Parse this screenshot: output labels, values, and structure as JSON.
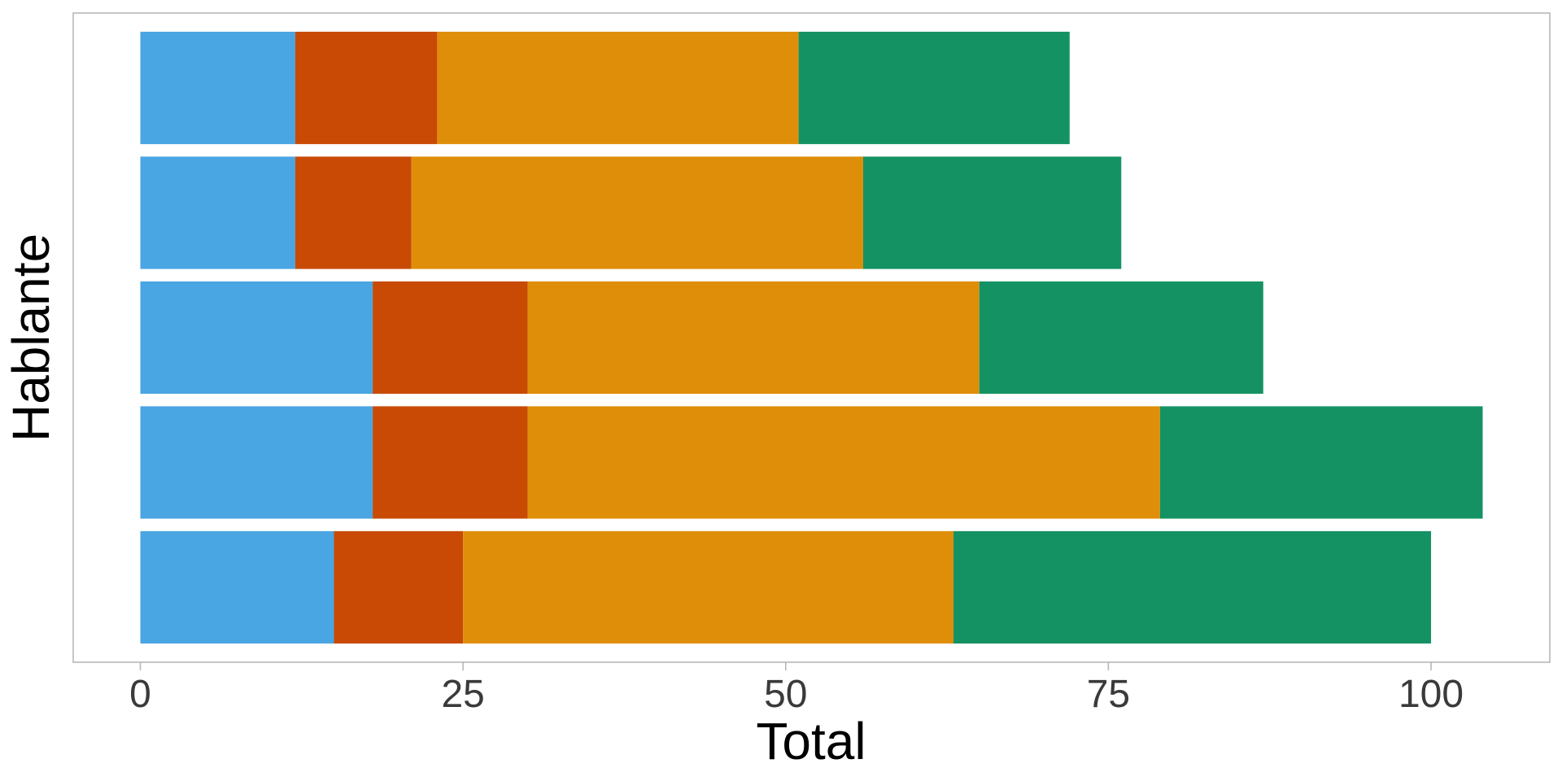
{
  "chart_data": {
    "type": "bar",
    "orientation": "horizontal",
    "stacked": true,
    "title": "",
    "xlabel": "Total",
    "ylabel": "Hablante",
    "xlim": [
      -5.2,
      109.2
    ],
    "x_ticks": [
      0,
      25,
      50,
      75,
      100
    ],
    "categories": [
      "",
      "",
      "",
      "",
      ""
    ],
    "series": [
      {
        "color": "#4aa5e3",
        "values": [
          15,
          18,
          18,
          12,
          12
        ]
      },
      {
        "color": "#c84a05",
        "values": [
          10,
          12,
          12,
          9,
          11
        ]
      },
      {
        "color": "#df8e09",
        "values": [
          38,
          49,
          35,
          35,
          28
        ]
      },
      {
        "color": "#159264",
        "values": [
          37,
          25,
          22,
          20,
          21
        ]
      }
    ],
    "grid": false,
    "legend": "none",
    "panel_border_color": "#b3b3b3"
  }
}
